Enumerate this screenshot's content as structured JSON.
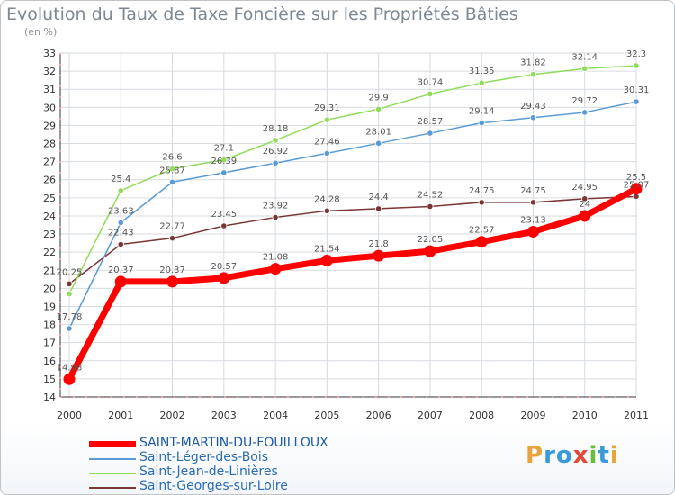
{
  "title": "Evolution du Taux de Taxe Foncière sur les Propriétés Bâties",
  "subtitle": "(en %)",
  "logo": {
    "text": "Proxiti",
    "colors": [
      "#e8a33a",
      "#3a9ad9",
      "#3a9ad9",
      "#e04a3a",
      "#6bbd3b",
      "#3a9ad9",
      "#e8a33a"
    ]
  },
  "chart_data": {
    "type": "line",
    "title": "Evolution du Taux de Taxe Foncière sur les Propriétés Bâties",
    "ylabel": "(en %)",
    "xlabel": "",
    "x": [
      "2000",
      "2001",
      "2002",
      "2003",
      "2004",
      "2005",
      "2006",
      "2007",
      "2008",
      "2009",
      "2010",
      "2011"
    ],
    "ylim": [
      14,
      33
    ],
    "yticks": [
      14,
      15,
      16,
      17,
      18,
      19,
      20,
      21,
      22,
      23,
      24,
      25,
      26,
      27,
      28,
      29,
      30,
      31,
      32,
      33
    ],
    "grid": true,
    "legend_position": "bottom-left",
    "series": [
      {
        "name": "SAINT-MARTIN-DU-FOUILLOUX",
        "color": "#ff0000",
        "values": [
          14.98,
          20.37,
          20.37,
          20.57,
          21.08,
          21.54,
          21.8,
          22.05,
          22.57,
          23.13,
          24,
          25.5
        ],
        "labels": [
          "14.98",
          "20.37",
          "20.37",
          "20.57",
          "21.08",
          "21.54",
          "21.8",
          "22.05",
          "22.57",
          "23.13",
          "24",
          "25.5"
        ]
      },
      {
        "name": "Saint-Léger-des-Bois",
        "color": "#5b9bd5",
        "values": [
          17.78,
          23.63,
          25.87,
          26.39,
          26.92,
          27.46,
          28.01,
          28.57,
          29.14,
          29.43,
          29.72,
          30.31
        ],
        "labels": [
          "17.78",
          "23.63",
          "25.87",
          "26.39",
          "26.92",
          "27.46",
          "28.01",
          "28.57",
          "29.14",
          "29.43",
          "29.72",
          "30.31"
        ]
      },
      {
        "name": "Saint-Jean-de-Linières",
        "color": "#8fdc5a",
        "values": [
          19.7,
          25.4,
          26.6,
          27.1,
          28.18,
          29.31,
          29.9,
          30.74,
          31.35,
          31.82,
          32.14,
          32.3
        ],
        "labels": [
          "",
          "25.4",
          "26.6",
          "27.1",
          "28.18",
          "29.31",
          "29.9",
          "30.74",
          "31.35",
          "31.82",
          "32.14",
          "32.3"
        ]
      },
      {
        "name": "Saint-Georges-sur-Loire",
        "color": "#7a3535",
        "values": [
          20.25,
          22.43,
          22.77,
          23.45,
          23.92,
          24.28,
          24.4,
          24.52,
          24.75,
          24.75,
          24.95,
          25.07
        ],
        "labels": [
          "20.25",
          "22.43",
          "22.77",
          "23.45",
          "23.92",
          "24.28",
          "24.4",
          "24.52",
          "24.75",
          "24.75",
          "24.95",
          "25.07"
        ]
      }
    ]
  }
}
